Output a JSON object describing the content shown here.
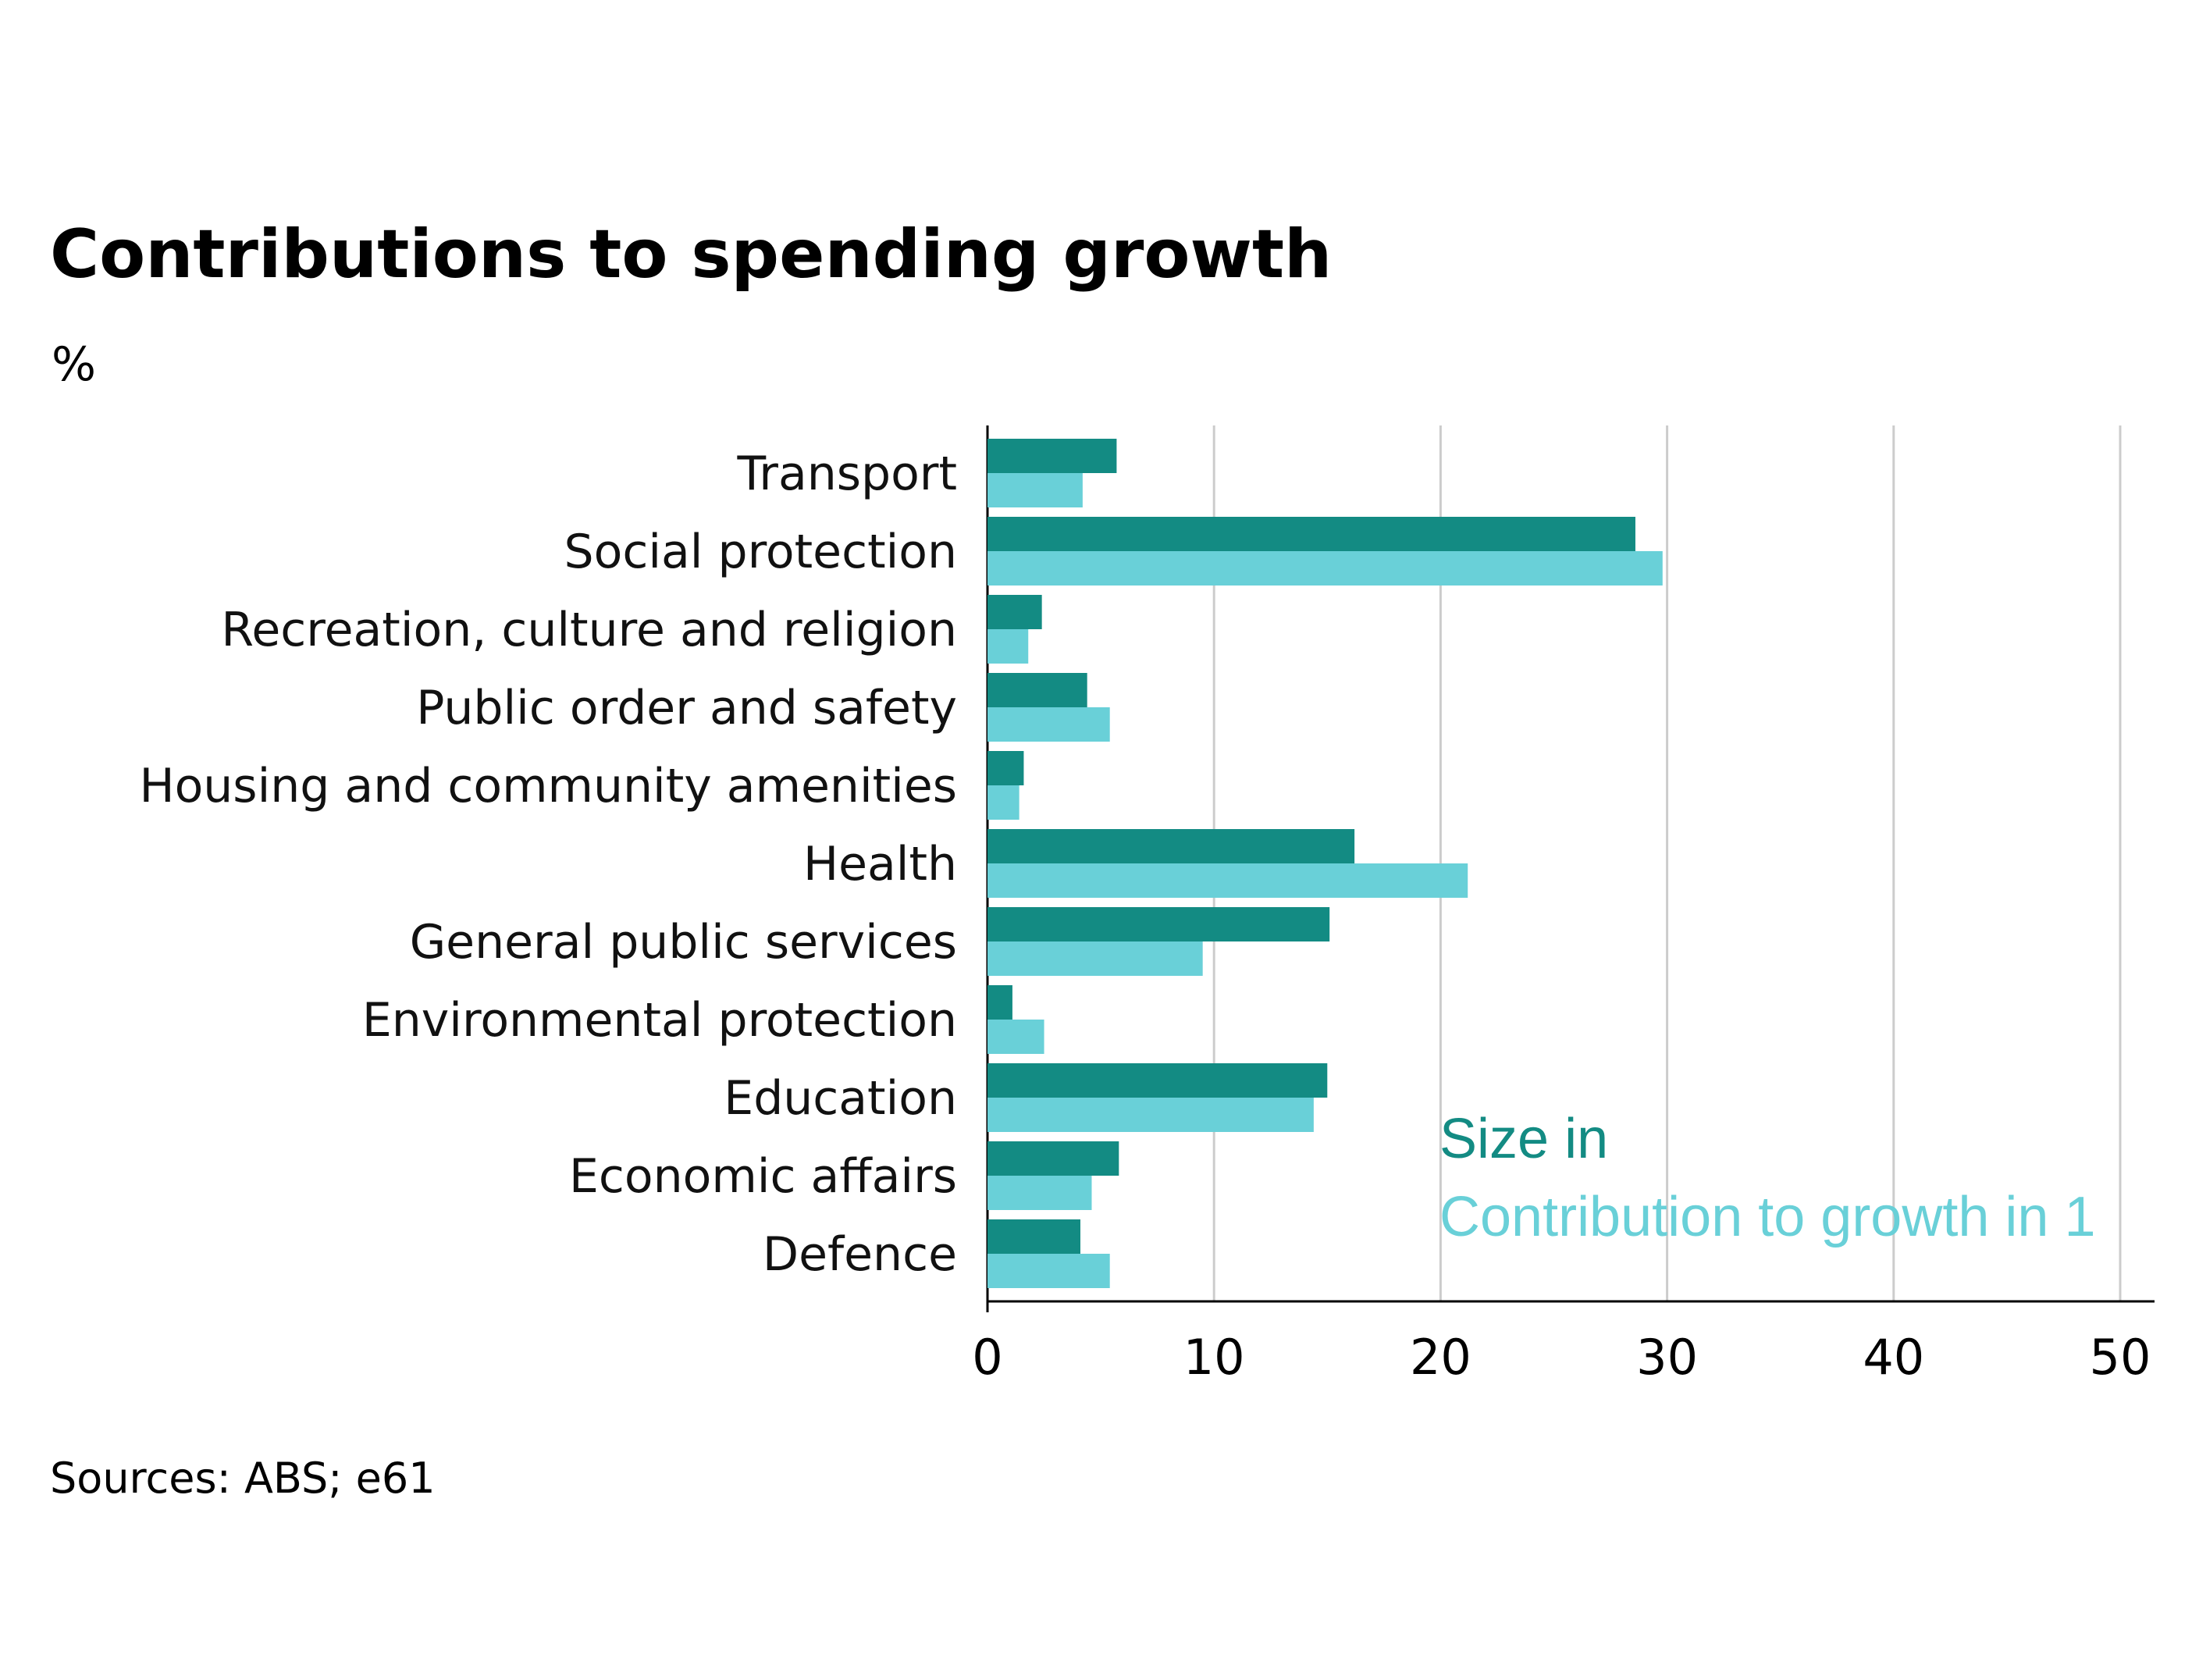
{
  "chart_data": {
    "type": "bar",
    "orientation": "horizontal",
    "title": "Contributions to spending growth",
    "subtitle": "%",
    "source": "Sources: ABS; e61",
    "categories": [
      "Transport",
      "Social protection",
      "Recreation, culture and religion",
      "Public order and safety",
      "Housing and community amenities",
      "Health",
      "General public services",
      "Environmental protection",
      "Education",
      "Economic affairs",
      "Defence"
    ],
    "series": [
      {
        "name": "Size in",
        "color": "#138b83",
        "values": [
          5.7,
          28.6,
          2.4,
          4.4,
          1.6,
          16.2,
          15.1,
          1.1,
          15.0,
          5.8,
          4.1
        ]
      },
      {
        "name": "Contribution to growth in 1",
        "color": "#69d0d8",
        "values": [
          4.2,
          29.8,
          1.8,
          5.4,
          1.4,
          21.2,
          9.5,
          2.5,
          14.4,
          4.6,
          5.4
        ]
      }
    ],
    "xlim": [
      0,
      51.5
    ],
    "xticks": [
      0,
      10,
      20,
      30,
      40,
      50
    ],
    "grid": true,
    "legend_position": "bottom-right inside plot"
  }
}
